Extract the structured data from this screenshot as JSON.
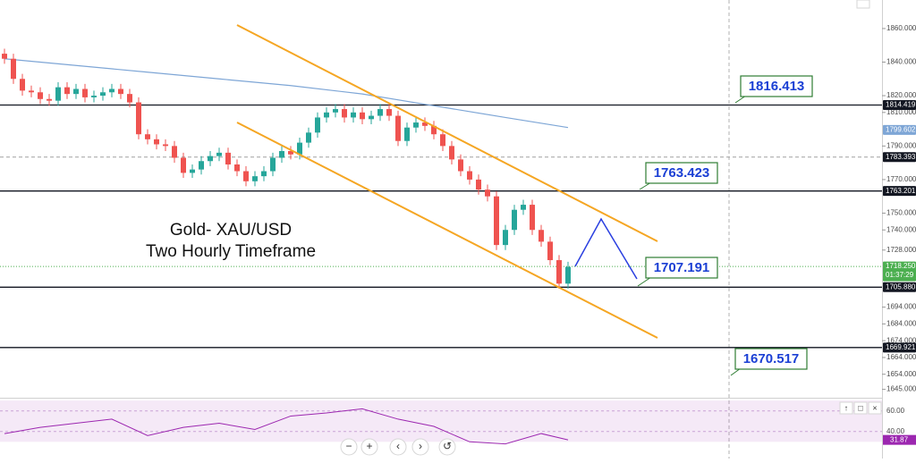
{
  "chart_data": {
    "type": "candlestick",
    "title": "Gold- XAU/USD",
    "subtitle": "Two Hourly Timeframe",
    "up_color": "#26a69a",
    "down_color": "#ef5350",
    "open": [
      1845,
      1842,
      1830,
      1823,
      1822,
      1818,
      1817,
      1825,
      1821,
      1824,
      1819,
      1820,
      1822,
      1824,
      1821,
      1816,
      1797,
      1794,
      1791,
      1790,
      1783,
      1774,
      1776,
      1781,
      1784,
      1786,
      1779,
      1775,
      1769,
      1772,
      1775,
      1783,
      1787,
      1785,
      1792,
      1798,
      1807,
      1810,
      1812,
      1807,
      1810,
      1806,
      1808,
      1812,
      1808,
      1793,
      1801,
      1804,
      1802,
      1797,
      1790,
      1782,
      1775,
      1770,
      1764,
      1760,
      1731,
      1740,
      1752,
      1755,
      1740,
      1733,
      1722,
      1708
    ],
    "high": [
      1848,
      1845,
      1833,
      1826,
      1825,
      1821,
      1828,
      1828,
      1827,
      1827,
      1823,
      1825,
      1827,
      1827,
      1824,
      1819,
      1800,
      1797,
      1794,
      1793,
      1786,
      1779,
      1784,
      1787,
      1789,
      1789,
      1782,
      1778,
      1775,
      1778,
      1786,
      1790,
      1790,
      1795,
      1801,
      1810,
      1813,
      1815,
      1815,
      1813,
      1813,
      1811,
      1815,
      1815,
      1811,
      1804,
      1807,
      1807,
      1805,
      1800,
      1793,
      1785,
      1778,
      1773,
      1767,
      1763,
      1743,
      1755,
      1758,
      1758,
      1743,
      1736,
      1725,
      1721
    ],
    "low": [
      1839,
      1827,
      1820,
      1819,
      1815,
      1814,
      1814,
      1818,
      1818,
      1816,
      1816,
      1817,
      1819,
      1818,
      1813,
      1794,
      1791,
      1788,
      1787,
      1780,
      1771,
      1771,
      1773,
      1778,
      1781,
      1776,
      1772,
      1766,
      1766,
      1769,
      1772,
      1780,
      1782,
      1782,
      1789,
      1795,
      1804,
      1807,
      1804,
      1804,
      1803,
      1803,
      1805,
      1805,
      1790,
      1790,
      1798,
      1799,
      1794,
      1787,
      1779,
      1772,
      1767,
      1761,
      1757,
      1728,
      1728,
      1737,
      1749,
      1737,
      1730,
      1719,
      1705,
      1705
    ],
    "close": [
      1842,
      1830,
      1823,
      1822,
      1818,
      1817,
      1825,
      1821,
      1824,
      1819,
      1820,
      1822,
      1824,
      1821,
      1816,
      1797,
      1794,
      1791,
      1790,
      1783,
      1774,
      1776,
      1781,
      1784,
      1786,
      1779,
      1775,
      1769,
      1772,
      1775,
      1783,
      1787,
      1785,
      1792,
      1798,
      1807,
      1810,
      1812,
      1807,
      1810,
      1806,
      1808,
      1812,
      1808,
      1793,
      1801,
      1804,
      1802,
      1797,
      1790,
      1782,
      1775,
      1770,
      1764,
      1760,
      1731,
      1740,
      1752,
      1755,
      1740,
      1733,
      1722,
      1708,
      1718
    ],
    "ylim": [
      1640,
      1877
    ],
    "yticks": [
      {
        "value": 1860,
        "label": "1860.000"
      },
      {
        "value": 1840,
        "label": "1840.000"
      },
      {
        "value": 1820,
        "label": "1820.000"
      },
      {
        "value": 1810,
        "label": "1810.000"
      },
      {
        "value": 1790,
        "label": "1790.000"
      },
      {
        "value": 1770,
        "label": "1770.000"
      },
      {
        "value": 1750,
        "label": "1750.000"
      },
      {
        "value": 1740,
        "label": "1740.000"
      },
      {
        "value": 1728,
        "label": "1728.000"
      },
      {
        "value": 1694,
        "label": "1694.000"
      },
      {
        "value": 1684,
        "label": "1684.000"
      },
      {
        "value": 1674,
        "label": "1674.000"
      },
      {
        "value": 1664,
        "label": "1664.000"
      },
      {
        "value": 1654,
        "label": "1654.000"
      },
      {
        "value": 1645,
        "label": "1645.000"
      }
    ],
    "moving_average": {
      "color": "#7ea6d6",
      "x": [
        0,
        8,
        16,
        24,
        32,
        40,
        48,
        56,
        63
      ],
      "values": [
        1842,
        1838,
        1834,
        1830,
        1826,
        1821,
        1814,
        1807,
        1801
      ]
    },
    "levels": [
      {
        "value": 1814.419,
        "line": "solid",
        "color": "#131722"
      },
      {
        "value": 1799.602,
        "line": "none",
        "color": "#7ea6d6"
      },
      {
        "value": 1783.393,
        "line": "dashed",
        "color": "#131722"
      },
      {
        "value": 1763.201,
        "line": "solid",
        "color": "#131722"
      },
      {
        "value": 1718.25,
        "label": "1718.250",
        "line": "dotted",
        "color": "#4caf50"
      },
      {
        "value": 1705.88,
        "label": "1705.880",
        "line": "solid",
        "color": "#131722"
      },
      {
        "value": 1669.921,
        "line": "solid",
        "color": "#131722"
      }
    ],
    "countdown": "01:37:29",
    "annotations": [
      "1816.413",
      "1763.423",
      "1707.191",
      "1670.517"
    ],
    "rsi": {
      "color": "#9c27b0",
      "x": [
        0,
        4,
        8,
        12,
        16,
        20,
        24,
        28,
        32,
        36,
        40,
        44,
        48,
        52,
        56,
        60,
        63
      ],
      "values": [
        38,
        44,
        48,
        52,
        36,
        44,
        48,
        42,
        55,
        58,
        62,
        52,
        45,
        30,
        28,
        38,
        31.87
      ],
      "ylim": [
        19,
        71
      ],
      "band": [
        30,
        70
      ],
      "yticks": [
        {
          "value": 60,
          "label": "60.00"
        },
        {
          "value": 40,
          "label": "40.00"
        }
      ]
    }
  }
}
